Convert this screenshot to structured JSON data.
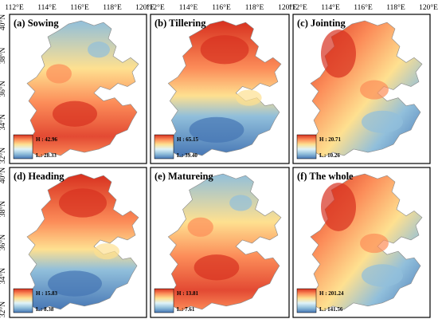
{
  "figure": {
    "top_lon_ticks": [
      "112°E",
      "114°E",
      "116°E",
      "118°E",
      "120°E"
    ],
    "left_lat_ticks": [
      "40°N",
      "38°N",
      "36°N",
      "34°N",
      "32°N"
    ],
    "colors": {
      "high": "#d7301f",
      "mid_high": "#fc8d59",
      "mid": "#fee090",
      "mid_low": "#e0f3f8",
      "low_mid": "#91bfdb",
      "low": "#4575b4"
    }
  },
  "panels": [
    {
      "id": "a",
      "title": "(a) Sowing",
      "legend_high": "H : 42.96",
      "legend_low": "L : 28.33",
      "pattern": "south-high"
    },
    {
      "id": "b",
      "title": "(b) Tillering",
      "legend_high": "H : 65.15",
      "legend_low": "L : 39.40",
      "pattern": "north-high"
    },
    {
      "id": "c",
      "title": "(c) Jointing",
      "legend_high": "H : 20.71",
      "legend_low": "L : 10.26",
      "pattern": "northwest-high"
    },
    {
      "id": "d",
      "title": "(d) Heading",
      "legend_high": "H : 15.83",
      "legend_low": "L : 8.38",
      "pattern": "north-high"
    },
    {
      "id": "e",
      "title": "(e) Matureing",
      "legend_high": "H : 13.81",
      "legend_low": "L : 7.61",
      "pattern": "south-high"
    },
    {
      "id": "f",
      "title": "(f) The whole",
      "legend_high": "H : 201.24",
      "legend_low": "L : 141.56",
      "pattern": "northwest-high"
    }
  ]
}
